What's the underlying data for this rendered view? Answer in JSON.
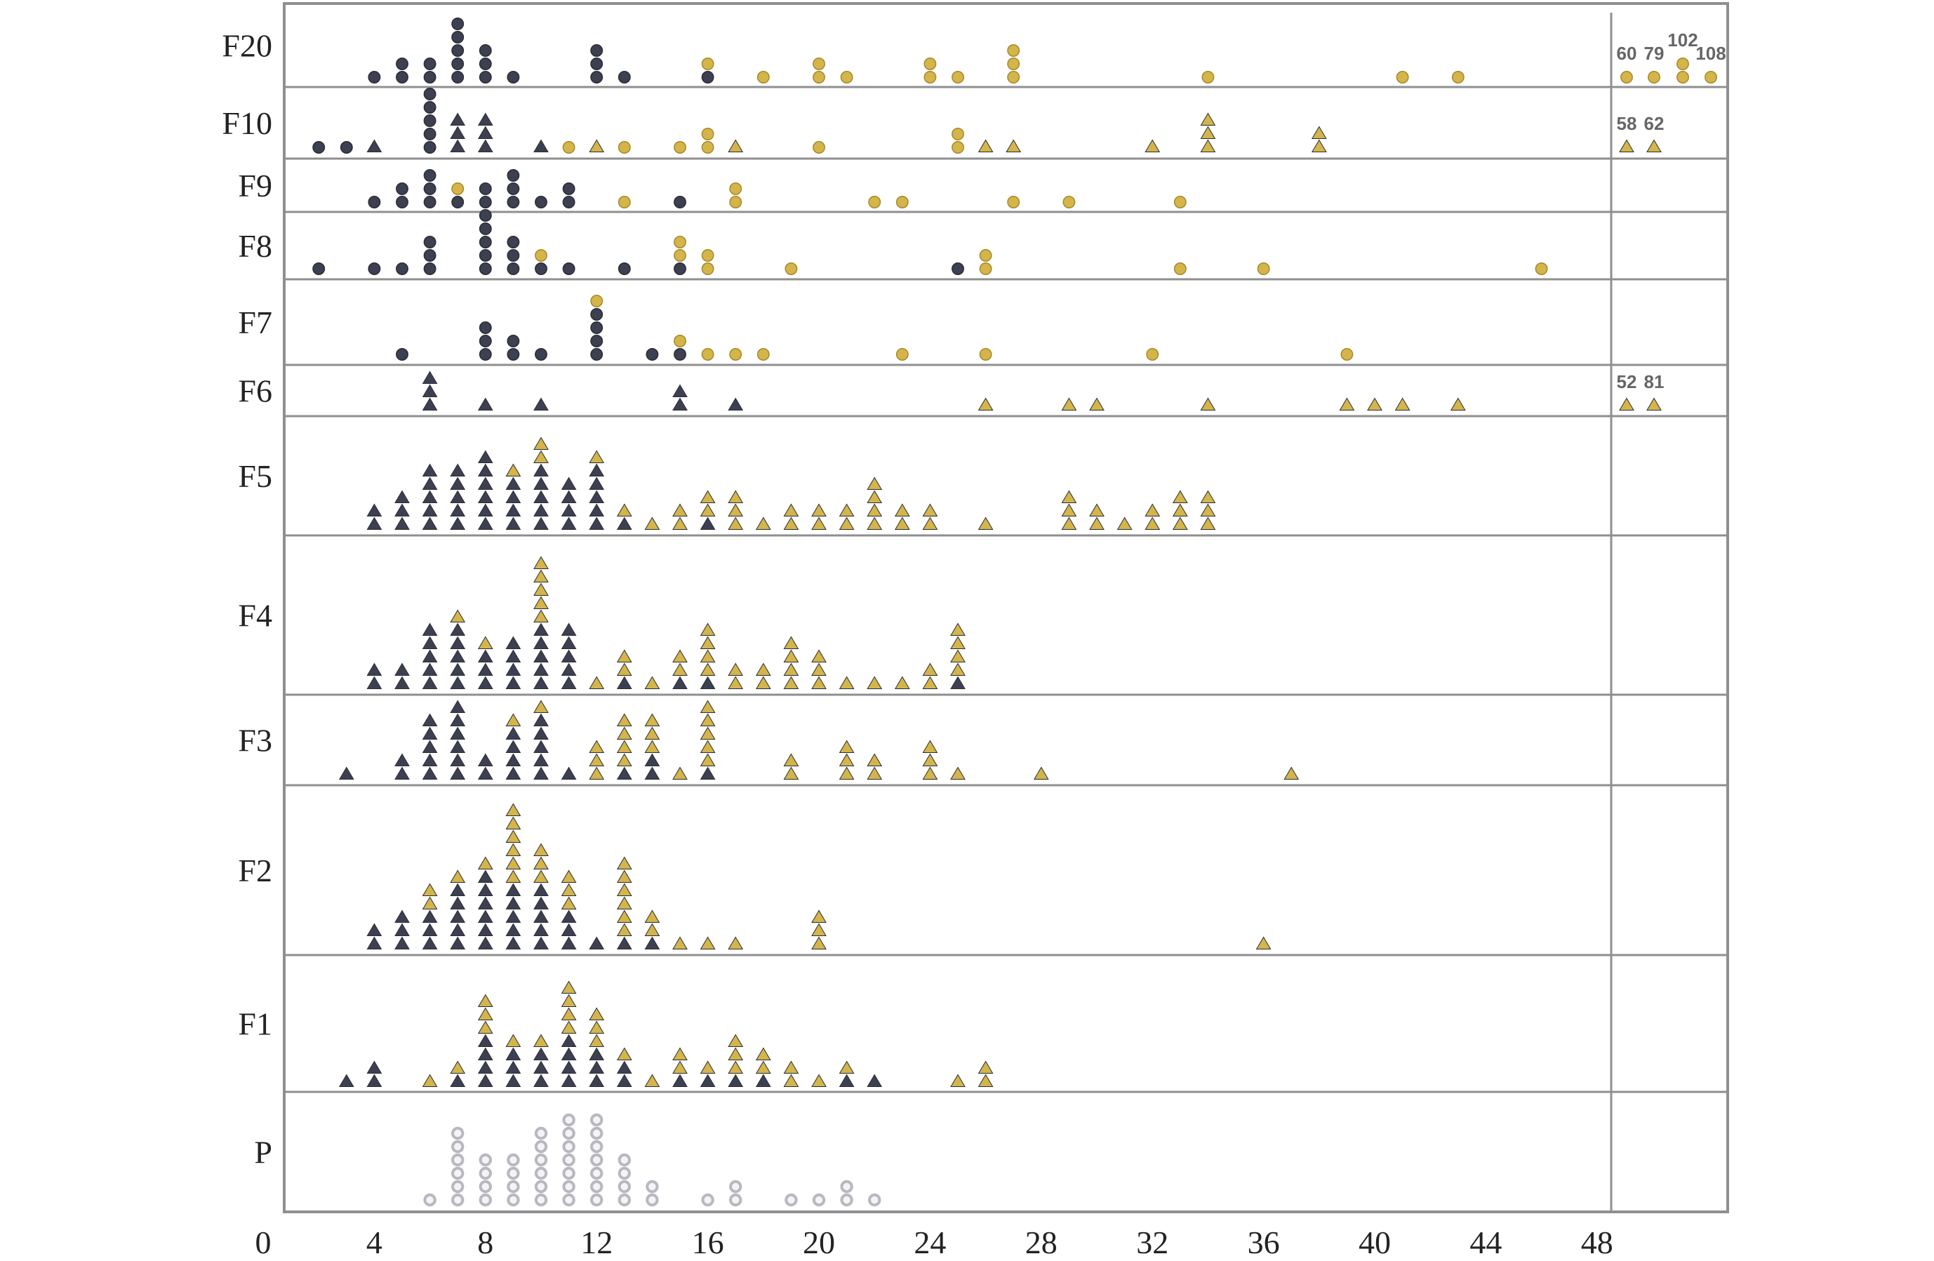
{
  "chart_data": {
    "type": "scatter",
    "style": "dot-plot, stacked markers per integer x value",
    "title": "",
    "xlabel": "",
    "ylabel": "",
    "xlim": [
      0,
      52
    ],
    "x_ticks": [
      "0",
      "4",
      "8",
      "12",
      "16",
      "20",
      "24",
      "28",
      "32",
      "36",
      "40",
      "44",
      "48"
    ],
    "colors": {
      "dark": "#3d4050",
      "gold": "#d4b54a",
      "grey": "#b8b8c0",
      "grid": "#8f8f8f"
    },
    "rows": [
      {
        "name": "F20",
        "marker": "circle",
        "columns": [
          {
            "x": 4,
            "dark": 1
          },
          {
            "x": 5,
            "dark": 2
          },
          {
            "x": 6,
            "dark": 2
          },
          {
            "x": 7,
            "dark": 5
          },
          {
            "x": 8,
            "dark": 3
          },
          {
            "x": 9,
            "dark": 1
          },
          {
            "x": 12,
            "dark": 3
          },
          {
            "x": 13,
            "dark": 1
          },
          {
            "x": 16,
            "dark": 1,
            "gold": 1
          },
          {
            "x": 18,
            "gold": 1
          },
          {
            "x": 20,
            "gold": 2
          },
          {
            "x": 21,
            "gold": 1
          },
          {
            "x": 24,
            "gold": 2
          },
          {
            "x": 25,
            "gold": 1
          },
          {
            "x": 27,
            "gold": 3
          },
          {
            "x": 34,
            "gold": 1
          },
          {
            "x": 41,
            "gold": 1
          },
          {
            "x": 43,
            "gold": 1
          }
        ],
        "outliers": [
          {
            "label": "60",
            "gold": 1
          },
          {
            "label": "79",
            "gold": 1
          },
          {
            "label": "102",
            "gold": 2
          },
          {
            "label": "108",
            "gold": 1
          }
        ]
      },
      {
        "name": "F10",
        "marker": "mixed",
        "columns": [
          {
            "x": 2,
            "dark": 1,
            "shape": "circle"
          },
          {
            "x": 3,
            "dark": 1,
            "shape": "circle"
          },
          {
            "x": 4,
            "dark": 1
          },
          {
            "x": 6,
            "dark": 5,
            "shape": "circle"
          },
          {
            "x": 7,
            "dark": 3
          },
          {
            "x": 8,
            "dark": 3
          },
          {
            "x": 10,
            "dark": 1
          },
          {
            "x": 11,
            "gold": 1,
            "shape": "circle"
          },
          {
            "x": 12,
            "gold": 1
          },
          {
            "x": 13,
            "gold": 1,
            "shape": "circle"
          },
          {
            "x": 15,
            "gold": 1,
            "shape": "circle"
          },
          {
            "x": 16,
            "gold": 2,
            "shape": "circle"
          },
          {
            "x": 17,
            "gold": 1
          },
          {
            "x": 20,
            "gold": 1,
            "shape": "circle"
          },
          {
            "x": 25,
            "gold": 2,
            "shape": "circle"
          },
          {
            "x": 26,
            "gold": 1
          },
          {
            "x": 27,
            "gold": 1
          },
          {
            "x": 32,
            "gold": 1
          },
          {
            "x": 34,
            "gold": 3
          },
          {
            "x": 38,
            "gold": 2
          }
        ],
        "outliers": [
          {
            "label": "58",
            "gold": 1
          },
          {
            "label": "62",
            "gold": 1
          }
        ]
      },
      {
        "name": "F9",
        "marker": "circle",
        "columns": [
          {
            "x": 4,
            "dark": 1
          },
          {
            "x": 5,
            "dark": 2
          },
          {
            "x": 6,
            "dark": 3
          },
          {
            "x": 7,
            "dark": 1,
            "gold": 1
          },
          {
            "x": 8,
            "dark": 2
          },
          {
            "x": 9,
            "dark": 3
          },
          {
            "x": 10,
            "dark": 1
          },
          {
            "x": 11,
            "dark": 2
          },
          {
            "x": 13,
            "gold": 1
          },
          {
            "x": 15,
            "dark": 1
          },
          {
            "x": 17,
            "gold": 2
          },
          {
            "x": 22,
            "gold": 1
          },
          {
            "x": 23,
            "gold": 1
          },
          {
            "x": 27,
            "gold": 1
          },
          {
            "x": 29,
            "gold": 1
          },
          {
            "x": 33,
            "gold": 1
          }
        ],
        "outliers": []
      },
      {
        "name": "F8",
        "marker": "circle",
        "columns": [
          {
            "x": 2,
            "dark": 1
          },
          {
            "x": 4,
            "dark": 1
          },
          {
            "x": 5,
            "dark": 1
          },
          {
            "x": 6,
            "dark": 3
          },
          {
            "x": 8,
            "dark": 5
          },
          {
            "x": 9,
            "dark": 3
          },
          {
            "x": 10,
            "dark": 1,
            "gold": 1
          },
          {
            "x": 11,
            "dark": 1
          },
          {
            "x": 13,
            "dark": 1
          },
          {
            "x": 15,
            "dark": 1,
            "gold": 2
          },
          {
            "x": 16,
            "gold": 2
          },
          {
            "x": 19,
            "gold": 1
          },
          {
            "x": 25,
            "dark": 1
          },
          {
            "x": 26,
            "gold": 2
          },
          {
            "x": 33,
            "gold": 1
          },
          {
            "x": 36,
            "gold": 1
          },
          {
            "x": 46,
            "gold": 1
          }
        ],
        "outliers": []
      },
      {
        "name": "F7",
        "marker": "circle",
        "columns": [
          {
            "x": 5,
            "dark": 1
          },
          {
            "x": 8,
            "dark": 3
          },
          {
            "x": 9,
            "dark": 2
          },
          {
            "x": 10,
            "dark": 1
          },
          {
            "x": 12,
            "dark": 4,
            "gold": 1
          },
          {
            "x": 14,
            "dark": 1
          },
          {
            "x": 15,
            "dark": 1,
            "gold": 1
          },
          {
            "x": 16,
            "gold": 1
          },
          {
            "x": 17,
            "gold": 1
          },
          {
            "x": 18,
            "gold": 1
          },
          {
            "x": 23,
            "gold": 1
          },
          {
            "x": 26,
            "gold": 1
          },
          {
            "x": 32,
            "gold": 1
          },
          {
            "x": 39,
            "gold": 1
          }
        ],
        "outliers": []
      },
      {
        "name": "F6",
        "marker": "triangle",
        "columns": [
          {
            "x": 6,
            "dark": 3
          },
          {
            "x": 8,
            "dark": 1
          },
          {
            "x": 10,
            "dark": 1
          },
          {
            "x": 15,
            "dark": 2
          },
          {
            "x": 17,
            "dark": 1
          },
          {
            "x": 26,
            "gold": 1
          },
          {
            "x": 29,
            "gold": 1
          },
          {
            "x": 30,
            "gold": 1
          },
          {
            "x": 34,
            "gold": 1
          },
          {
            "x": 39,
            "gold": 1
          },
          {
            "x": 40,
            "gold": 1
          },
          {
            "x": 41,
            "gold": 1
          },
          {
            "x": 43,
            "gold": 1
          }
        ],
        "outliers": [
          {
            "label": "52",
            "gold": 1
          },
          {
            "label": "81",
            "gold": 1
          }
        ]
      },
      {
        "name": "F5",
        "marker": "triangle",
        "columns": [
          {
            "x": 4,
            "dark": 2
          },
          {
            "x": 5,
            "dark": 3
          },
          {
            "x": 6,
            "dark": 5
          },
          {
            "x": 7,
            "dark": 5
          },
          {
            "x": 8,
            "dark": 6
          },
          {
            "x": 9,
            "dark": 4,
            "gold": 1
          },
          {
            "x": 10,
            "dark": 5,
            "gold": 2
          },
          {
            "x": 11,
            "dark": 4
          },
          {
            "x": 12,
            "dark": 5,
            "gold": 1
          },
          {
            "x": 13,
            "dark": 1,
            "gold": 1
          },
          {
            "x": 14,
            "gold": 1
          },
          {
            "x": 15,
            "gold": 2
          },
          {
            "x": 16,
            "dark": 1,
            "gold": 2
          },
          {
            "x": 17,
            "gold": 3
          },
          {
            "x": 18,
            "gold": 1
          },
          {
            "x": 19,
            "gold": 2
          },
          {
            "x": 20,
            "gold": 2
          },
          {
            "x": 21,
            "gold": 2
          },
          {
            "x": 22,
            "gold": 4
          },
          {
            "x": 23,
            "gold": 2
          },
          {
            "x": 24,
            "gold": 2
          },
          {
            "x": 26,
            "gold": 1
          },
          {
            "x": 29,
            "gold": 3
          },
          {
            "x": 30,
            "gold": 2
          },
          {
            "x": 31,
            "gold": 1
          },
          {
            "x": 32,
            "gold": 2
          },
          {
            "x": 33,
            "gold": 3
          },
          {
            "x": 34,
            "gold": 3
          }
        ],
        "outliers": []
      },
      {
        "name": "F4",
        "marker": "triangle",
        "columns": [
          {
            "x": 4,
            "dark": 2
          },
          {
            "x": 5,
            "dark": 2
          },
          {
            "x": 6,
            "dark": 5
          },
          {
            "x": 7,
            "dark": 5,
            "gold": 1
          },
          {
            "x": 8,
            "dark": 3,
            "gold": 1
          },
          {
            "x": 9,
            "dark": 4
          },
          {
            "x": 10,
            "dark": 5,
            "gold": 5
          },
          {
            "x": 11,
            "dark": 5
          },
          {
            "x": 12,
            "gold": 1
          },
          {
            "x": 13,
            "dark": 1,
            "gold": 2
          },
          {
            "x": 14,
            "gold": 1
          },
          {
            "x": 15,
            "dark": 1,
            "gold": 2
          },
          {
            "x": 16,
            "dark": 1,
            "gold": 4
          },
          {
            "x": 17,
            "gold": 2
          },
          {
            "x": 18,
            "gold": 2
          },
          {
            "x": 19,
            "gold": 4
          },
          {
            "x": 20,
            "gold": 3
          },
          {
            "x": 21,
            "gold": 1
          },
          {
            "x": 22,
            "gold": 1
          },
          {
            "x": 23,
            "gold": 1
          },
          {
            "x": 24,
            "gold": 2
          },
          {
            "x": 25,
            "dark": 1,
            "gold": 4
          }
        ],
        "outliers": []
      },
      {
        "name": "F3",
        "marker": "triangle",
        "columns": [
          {
            "x": 3,
            "dark": 1
          },
          {
            "x": 5,
            "dark": 2
          },
          {
            "x": 6,
            "dark": 5
          },
          {
            "x": 7,
            "dark": 6
          },
          {
            "x": 8,
            "dark": 2
          },
          {
            "x": 9,
            "dark": 4,
            "gold": 1
          },
          {
            "x": 10,
            "dark": 5,
            "gold": 1
          },
          {
            "x": 11,
            "dark": 1
          },
          {
            "x": 12,
            "gold": 3
          },
          {
            "x": 13,
            "dark": 1,
            "gold": 4
          },
          {
            "x": 14,
            "dark": 2,
            "gold": 3
          },
          {
            "x": 15,
            "gold": 1
          },
          {
            "x": 16,
            "dark": 1,
            "gold": 5
          },
          {
            "x": 19,
            "gold": 2
          },
          {
            "x": 21,
            "gold": 3
          },
          {
            "x": 22,
            "gold": 2
          },
          {
            "x": 24,
            "gold": 3
          },
          {
            "x": 25,
            "gold": 1
          },
          {
            "x": 28,
            "gold": 1
          },
          {
            "x": 37,
            "gold": 1
          }
        ],
        "outliers": []
      },
      {
        "name": "F2",
        "marker": "triangle",
        "columns": [
          {
            "x": 4,
            "dark": 2
          },
          {
            "x": 5,
            "dark": 3
          },
          {
            "x": 6,
            "dark": 3,
            "gold": 2
          },
          {
            "x": 7,
            "dark": 5,
            "gold": 1
          },
          {
            "x": 8,
            "dark": 6,
            "gold": 1
          },
          {
            "x": 9,
            "dark": 5,
            "gold": 6
          },
          {
            "x": 10,
            "dark": 5,
            "gold": 3
          },
          {
            "x": 11,
            "dark": 3,
            "gold": 3
          },
          {
            "x": 12,
            "dark": 1
          },
          {
            "x": 13,
            "dark": 1,
            "gold": 6
          },
          {
            "x": 14,
            "dark": 1,
            "gold": 2
          },
          {
            "x": 15,
            "gold": 1
          },
          {
            "x": 16,
            "gold": 1
          },
          {
            "x": 17,
            "gold": 1
          },
          {
            "x": 20,
            "gold": 3
          },
          {
            "x": 36,
            "gold": 1
          }
        ],
        "outliers": []
      },
      {
        "name": "F1",
        "marker": "triangle",
        "columns": [
          {
            "x": 3,
            "dark": 1
          },
          {
            "x": 4,
            "dark": 2
          },
          {
            "x": 6,
            "gold": 1
          },
          {
            "x": 7,
            "dark": 1,
            "gold": 1
          },
          {
            "x": 8,
            "dark": 4,
            "gold": 3
          },
          {
            "x": 9,
            "dark": 3,
            "gold": 1
          },
          {
            "x": 10,
            "dark": 3,
            "gold": 1
          },
          {
            "x": 11,
            "dark": 4,
            "gold": 4
          },
          {
            "x": 12,
            "dark": 3,
            "gold": 3
          },
          {
            "x": 13,
            "dark": 2,
            "gold": 1
          },
          {
            "x": 14,
            "gold": 1
          },
          {
            "x": 15,
            "dark": 1,
            "gold": 2
          },
          {
            "x": 16,
            "dark": 1,
            "gold": 1
          },
          {
            "x": 17,
            "dark": 1,
            "gold": 3
          },
          {
            "x": 18,
            "dark": 1,
            "gold": 2
          },
          {
            "x": 19,
            "gold": 2
          },
          {
            "x": 20,
            "gold": 1
          },
          {
            "x": 21,
            "dark": 1,
            "gold": 1
          },
          {
            "x": 22,
            "dark": 1
          },
          {
            "x": 25,
            "gold": 1
          },
          {
            "x": 26,
            "gold": 2
          }
        ],
        "outliers": []
      },
      {
        "name": "P",
        "marker": "circle-open",
        "columns": [
          {
            "x": 6,
            "grey": 1
          },
          {
            "x": 7,
            "grey": 6
          },
          {
            "x": 8,
            "grey": 4
          },
          {
            "x": 9,
            "grey": 4
          },
          {
            "x": 10,
            "grey": 6
          },
          {
            "x": 11,
            "grey": 7
          },
          {
            "x": 12,
            "grey": 7
          },
          {
            "x": 13,
            "grey": 4
          },
          {
            "x": 14,
            "grey": 2
          },
          {
            "x": 16,
            "grey": 1
          },
          {
            "x": 17,
            "grey": 2
          },
          {
            "x": 19,
            "grey": 1
          },
          {
            "x": 20,
            "grey": 1
          },
          {
            "x": 21,
            "grey": 2
          },
          {
            "x": 22,
            "grey": 1
          }
        ],
        "outliers": []
      }
    ]
  }
}
